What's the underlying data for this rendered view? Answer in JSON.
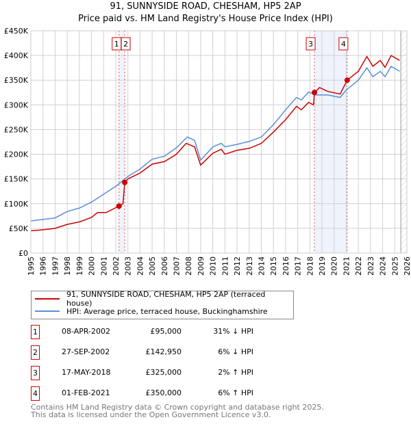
{
  "title": "91, SUNNYSIDE ROAD, CHESHAM, HP5 2AP",
  "subtitle": "Price paid vs. HM Land Registry's House Price Index (HPI)",
  "chart_data": {
    "type": "line",
    "title": "91, SUNNYSIDE ROAD, CHESHAM, HP5 2AP",
    "subtitle": "Price paid vs. HM Land Registry's House Price Index (HPI)",
    "xlim": [
      1995,
      2026
    ],
    "ylim": [
      0,
      450000
    ],
    "x_ticks": [
      "1995",
      "1996",
      "1997",
      "1998",
      "1999",
      "2000",
      "2001",
      "2002",
      "2003",
      "2004",
      "2005",
      "2006",
      "2007",
      "2008",
      "2009",
      "2010",
      "2011",
      "2012",
      "2013",
      "2014",
      "2015",
      "2016",
      "2017",
      "2018",
      "2019",
      "2020",
      "2021",
      "2022",
      "2023",
      "2024",
      "2025",
      "2026"
    ],
    "y_ticks": [
      {
        "v": 0,
        "label": "£0"
      },
      {
        "v": 50000,
        "label": "£50K"
      },
      {
        "v": 100000,
        "label": "£100K"
      },
      {
        "v": 150000,
        "label": "£150K"
      },
      {
        "v": 200000,
        "label": "£200K"
      },
      {
        "v": 250000,
        "label": "£250K"
      },
      {
        "v": 300000,
        "label": "£300K"
      },
      {
        "v": 350000,
        "label": "£350K"
      },
      {
        "v": 400000,
        "label": "£400K"
      },
      {
        "v": 450000,
        "label": "£450K"
      }
    ],
    "grid": true,
    "series": [
      {
        "name": "91, SUNNYSIDE ROAD, CHESHAM, HP5 2AP (terraced house)",
        "color": "#cc0000",
        "x": [
          1995,
          1996,
          1997,
          1998,
          1999,
          2000,
          2000.5,
          2001.2,
          2002.27,
          2002.6,
          2002.74,
          2003,
          2004,
          2005,
          2006,
          2007,
          2007.8,
          2008.5,
          2009,
          2010,
          2010.7,
          2011,
          2012,
          2013,
          2014,
          2015,
          2016,
          2016.9,
          2017.3,
          2017.9,
          2018.3,
          2018.38,
          2018.8,
          2019.5,
          2020.5,
          2021.08,
          2022,
          2022.7,
          2023.2,
          2023.8,
          2024.2,
          2024.7,
          2025.4
        ],
        "y": [
          45000,
          47000,
          50000,
          58000,
          63000,
          72000,
          82000,
          82000,
          95000,
          100000,
          142950,
          150000,
          162000,
          180000,
          185000,
          200000,
          222000,
          215000,
          178000,
          202000,
          210000,
          200000,
          208000,
          212000,
          222000,
          245000,
          270000,
          297000,
          290000,
          305000,
          300000,
          325000,
          335000,
          327000,
          322000,
          350000,
          368000,
          398000,
          378000,
          390000,
          376000,
          400000,
          390000
        ]
      },
      {
        "name": "HPI: Average price, terraced house, Buckinghamshire",
        "color": "#5b8dd6",
        "x": [
          1995,
          1996,
          1997,
          1998,
          1999,
          2000,
          2001,
          2002,
          2003,
          2004,
          2005,
          2006,
          2007,
          2007.9,
          2008.5,
          2009,
          2010,
          2010.7,
          2011,
          2012,
          2013,
          2014,
          2015,
          2016,
          2016.9,
          2017.3,
          2017.9,
          2018.5,
          2019.5,
          2020.5,
          2021,
          2022,
          2022.7,
          2023.2,
          2023.8,
          2024.2,
          2024.7,
          2025.4
        ],
        "y": [
          65000,
          68000,
          71000,
          84000,
          91000,
          103000,
          119000,
          135000,
          155000,
          170000,
          190000,
          196000,
          213000,
          235000,
          228000,
          188000,
          215000,
          222000,
          215000,
          220000,
          226000,
          235000,
          260000,
          290000,
          315000,
          310000,
          326000,
          320000,
          320000,
          315000,
          330000,
          350000,
          375000,
          357000,
          368000,
          357000,
          378000,
          368000
        ]
      }
    ],
    "sales": [
      {
        "n": "1",
        "x": 2002.27,
        "date": "08-APR-2002",
        "price": 95000,
        "price_label": "£95,000",
        "hpi": "31% ↓ HPI"
      },
      {
        "n": "2",
        "x": 2002.74,
        "date": "27-SEP-2002",
        "price": 142950,
        "price_label": "£142,950",
        "hpi": "6% ↓ HPI"
      },
      {
        "n": "3",
        "x": 2018.38,
        "date": "17-MAY-2018",
        "price": 325000,
        "price_label": "£325,000",
        "hpi": "2% ↑ HPI"
      },
      {
        "n": "4",
        "x": 2021.08,
        "date": "01-FEB-2021",
        "price": 350000,
        "price_label": "£350,000",
        "hpi": "6% ↑ HPI"
      }
    ],
    "shaded": [
      [
        2002.27,
        2002.74
      ],
      [
        2018.38,
        2021.08
      ]
    ],
    "forecast_from": 2025.5,
    "legend_position": "below"
  },
  "footer": [
    "Contains HM Land Registry data © Crown copyright and database right 2025.",
    "This data is licensed under the Open Government Licence v3.0."
  ]
}
